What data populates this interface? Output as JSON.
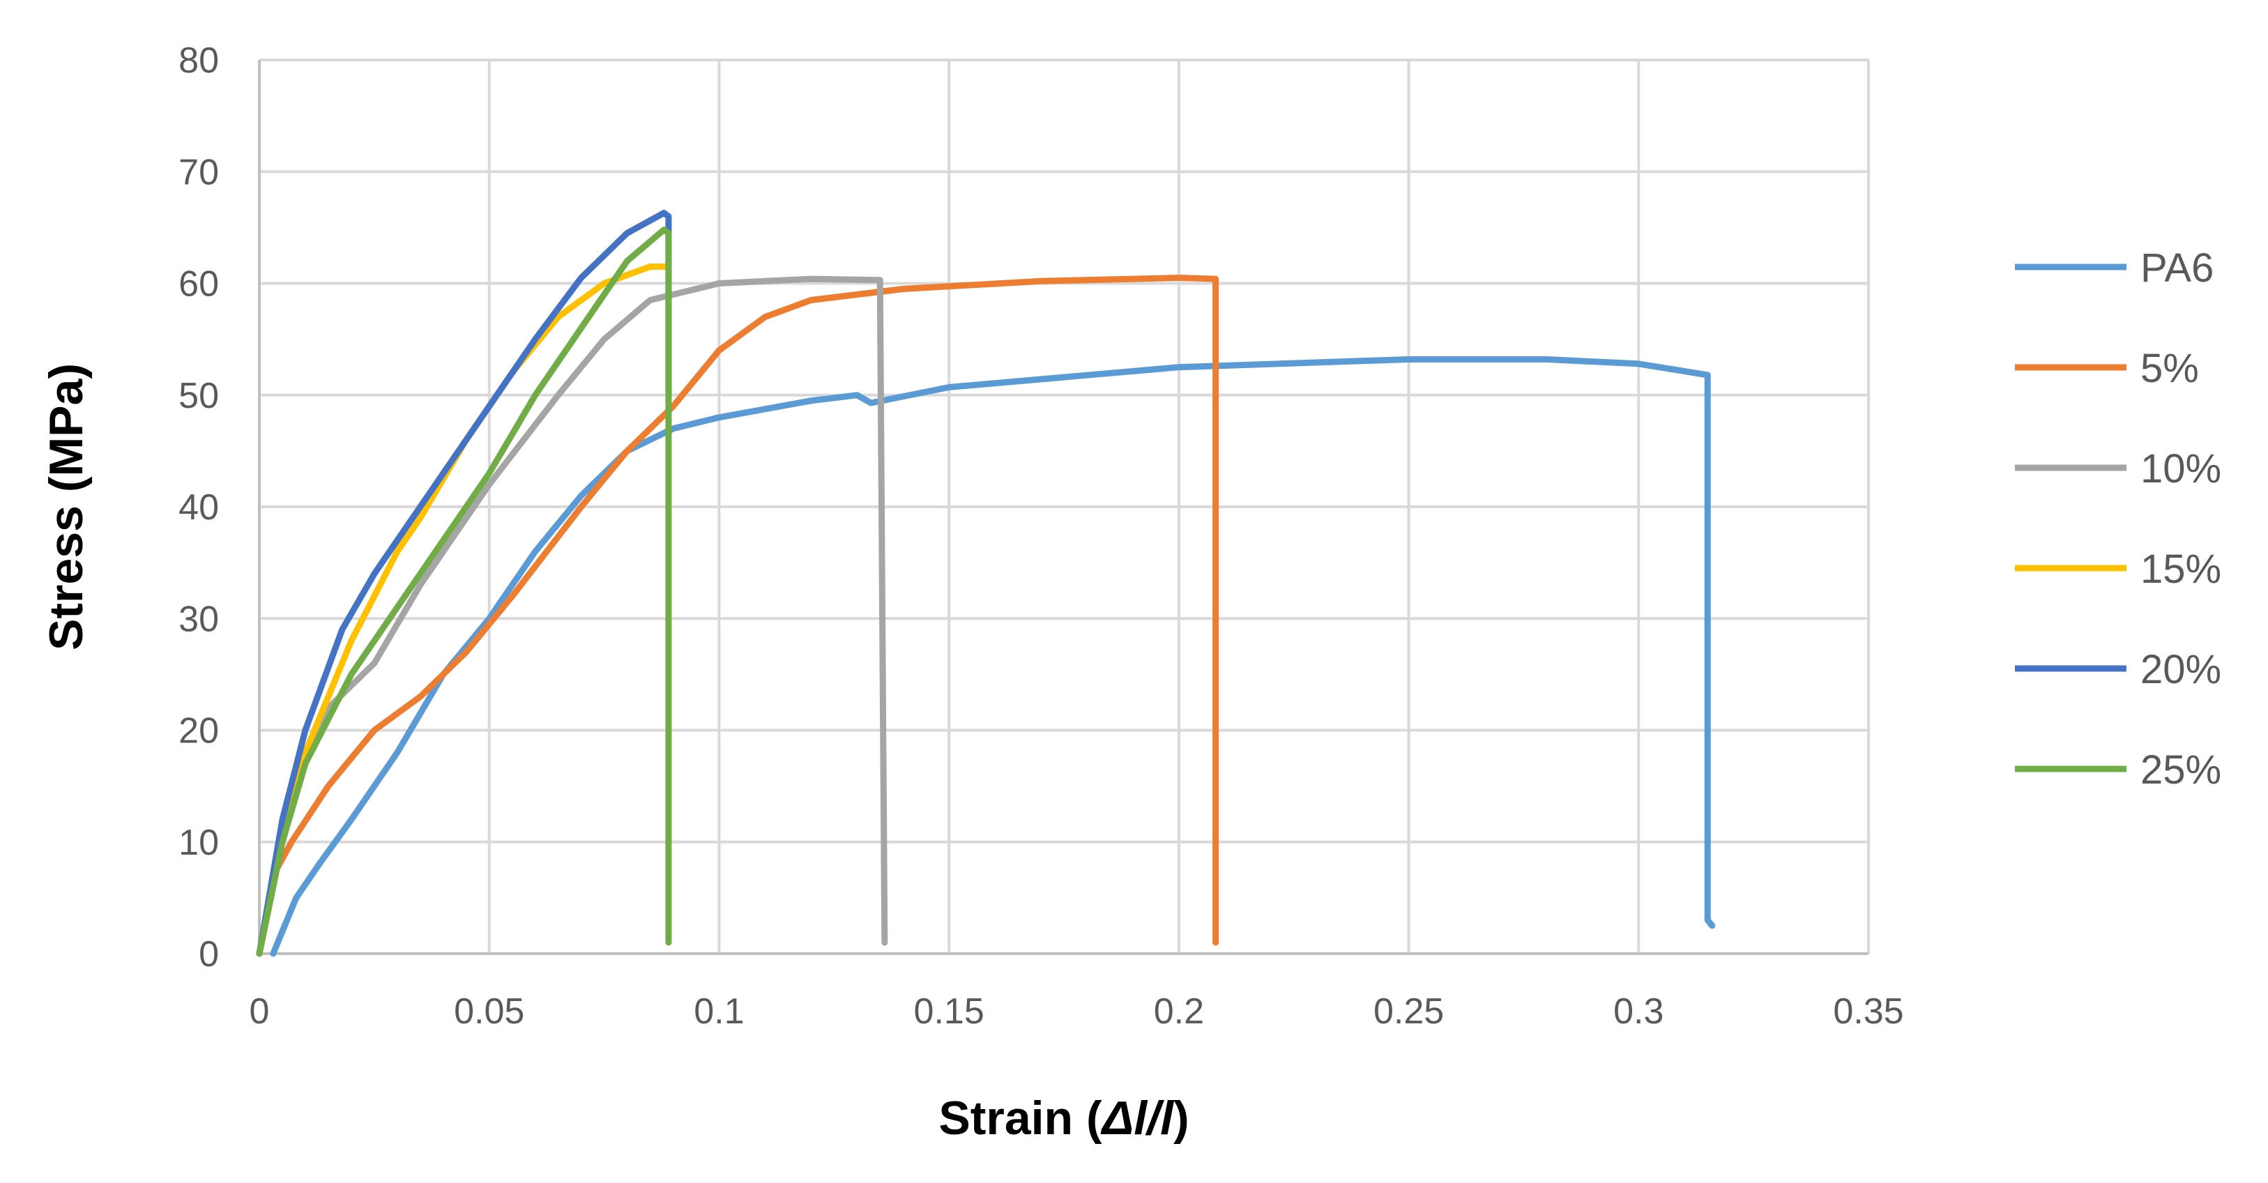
{
  "chart_data": {
    "type": "line",
    "xlabel": "Strain (Δl/l)",
    "xlabel_parts": {
      "prefix": "Strain (",
      "italic": "Δl/l",
      "suffix": ")"
    },
    "ylabel": "Stress (MPa)",
    "xlim": [
      0,
      0.35
    ],
    "ylim": [
      0,
      80
    ],
    "x_ticks": [
      "0",
      "0.05",
      "0.1",
      "0.15",
      "0.2",
      "0.25",
      "0.3",
      "0.35"
    ],
    "y_ticks": [
      "0",
      "10",
      "20",
      "30",
      "40",
      "50",
      "60",
      "70",
      "80"
    ],
    "grid": true,
    "legend_position": "right",
    "series": [
      {
        "name": "PA6",
        "color": "#5B9BD5",
        "points": [
          [
            0.003,
            0
          ],
          [
            0.005,
            2
          ],
          [
            0.008,
            5
          ],
          [
            0.013,
            8
          ],
          [
            0.02,
            12
          ],
          [
            0.03,
            18
          ],
          [
            0.04,
            25
          ],
          [
            0.05,
            30
          ],
          [
            0.06,
            36
          ],
          [
            0.07,
            41
          ],
          [
            0.08,
            45
          ],
          [
            0.09,
            47
          ],
          [
            0.1,
            48
          ],
          [
            0.12,
            49.5
          ],
          [
            0.13,
            50
          ],
          [
            0.133,
            49.3
          ],
          [
            0.15,
            50.7
          ],
          [
            0.2,
            52.5
          ],
          [
            0.25,
            53.2
          ],
          [
            0.28,
            53.2
          ],
          [
            0.3,
            52.8
          ],
          [
            0.315,
            51.8
          ],
          [
            0.315,
            3
          ],
          [
            0.316,
            2.5
          ]
        ]
      },
      {
        "name": "5%",
        "color": "#ED7D31",
        "points": [
          [
            0,
            0
          ],
          [
            0.003,
            7
          ],
          [
            0.007,
            10
          ],
          [
            0.015,
            15
          ],
          [
            0.025,
            20
          ],
          [
            0.035,
            23
          ],
          [
            0.045,
            27
          ],
          [
            0.055,
            32
          ],
          [
            0.07,
            40
          ],
          [
            0.08,
            45
          ],
          [
            0.09,
            49
          ],
          [
            0.1,
            54
          ],
          [
            0.11,
            57
          ],
          [
            0.12,
            58.5
          ],
          [
            0.14,
            59.5
          ],
          [
            0.17,
            60.2
          ],
          [
            0.2,
            60.5
          ],
          [
            0.208,
            60.4
          ],
          [
            0.208,
            1
          ]
        ]
      },
      {
        "name": "10%",
        "color": "#A5A5A5",
        "points": [
          [
            0,
            0
          ],
          [
            0.005,
            10
          ],
          [
            0.01,
            17
          ],
          [
            0.015,
            22
          ],
          [
            0.02,
            24
          ],
          [
            0.025,
            26
          ],
          [
            0.035,
            33
          ],
          [
            0.05,
            42
          ],
          [
            0.065,
            50
          ],
          [
            0.075,
            55
          ],
          [
            0.085,
            58.5
          ],
          [
            0.1,
            60
          ],
          [
            0.12,
            60.4
          ],
          [
            0.135,
            60.3
          ],
          [
            0.136,
            1
          ]
        ]
      },
      {
        "name": "15%",
        "color": "#FFC000",
        "points": [
          [
            0,
            0
          ],
          [
            0.005,
            11
          ],
          [
            0.01,
            18
          ],
          [
            0.02,
            28
          ],
          [
            0.03,
            36
          ],
          [
            0.035,
            39
          ],
          [
            0.045,
            46
          ],
          [
            0.055,
            52
          ],
          [
            0.065,
            57
          ],
          [
            0.075,
            60
          ],
          [
            0.085,
            61.5
          ],
          [
            0.089,
            61.5
          ]
        ]
      },
      {
        "name": "20%",
        "color": "#4472C4",
        "points": [
          [
            0,
            0
          ],
          [
            0.005,
            12
          ],
          [
            0.01,
            20
          ],
          [
            0.018,
            29
          ],
          [
            0.025,
            34
          ],
          [
            0.035,
            40
          ],
          [
            0.05,
            49
          ],
          [
            0.06,
            55
          ],
          [
            0.07,
            60.5
          ],
          [
            0.08,
            64.5
          ],
          [
            0.088,
            66.3
          ],
          [
            0.089,
            66
          ],
          [
            0.089,
            50
          ]
        ]
      },
      {
        "name": "25%",
        "color": "#70AD47",
        "points": [
          [
            0,
            0
          ],
          [
            0.005,
            10
          ],
          [
            0.01,
            17
          ],
          [
            0.02,
            25
          ],
          [
            0.03,
            31
          ],
          [
            0.04,
            37
          ],
          [
            0.05,
            43
          ],
          [
            0.06,
            50
          ],
          [
            0.07,
            56
          ],
          [
            0.08,
            62
          ],
          [
            0.088,
            64.8
          ],
          [
            0.089,
            64.5
          ],
          [
            0.089,
            1
          ]
        ]
      }
    ]
  }
}
